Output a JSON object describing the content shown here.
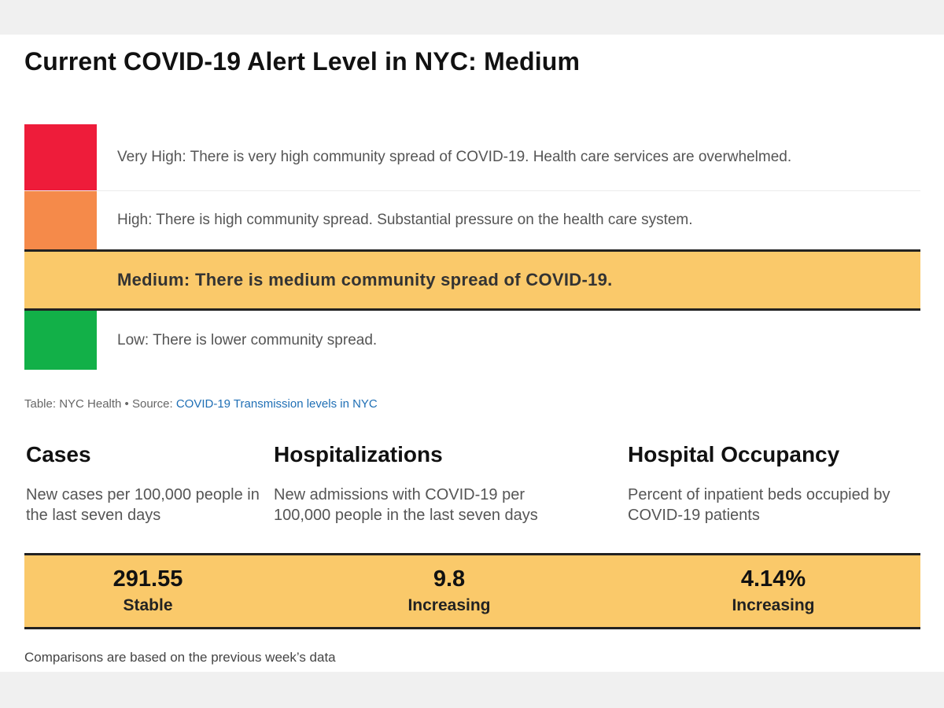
{
  "title": "Current COVID-19 Alert Level in NYC: Medium",
  "colors": {
    "very_high": "#ee1c3a",
    "high": "#f58a4a",
    "medium": "#fac96a",
    "low": "#12b048",
    "link": "#1f6fb5"
  },
  "levels": [
    {
      "key": "very_high",
      "text": "Very High: There is very high community spread of COVID-19. Health care services are overwhelmed."
    },
    {
      "key": "high",
      "text": "High: There is high community spread. Substantial pressure on the health care system."
    },
    {
      "key": "medium",
      "text": "Medium: There is medium community spread of COVID-19.",
      "current": true
    },
    {
      "key": "low",
      "text": "Low: There is lower community spread."
    }
  ],
  "source": {
    "prefix": "Table: NYC Health • Source: ",
    "link_text": "COVID-19 Transmission levels in NYC"
  },
  "metrics": [
    {
      "heading": "Cases",
      "description": "New cases per 100,000 people in the last seven days",
      "value": "291.55",
      "trend": "Stable"
    },
    {
      "heading": "Hospitalizations",
      "description": "New admissions with COVID-19 per 100,000 people in the last seven days",
      "value": "9.8",
      "trend": "Increasing"
    },
    {
      "heading": "Hospital Occupancy",
      "description": "Percent of inpatient beds occupied by COVID-19 patients",
      "value": "4.14%",
      "trend": "Increasing"
    }
  ],
  "footnote": "Comparisons are based on the previous week’s data"
}
